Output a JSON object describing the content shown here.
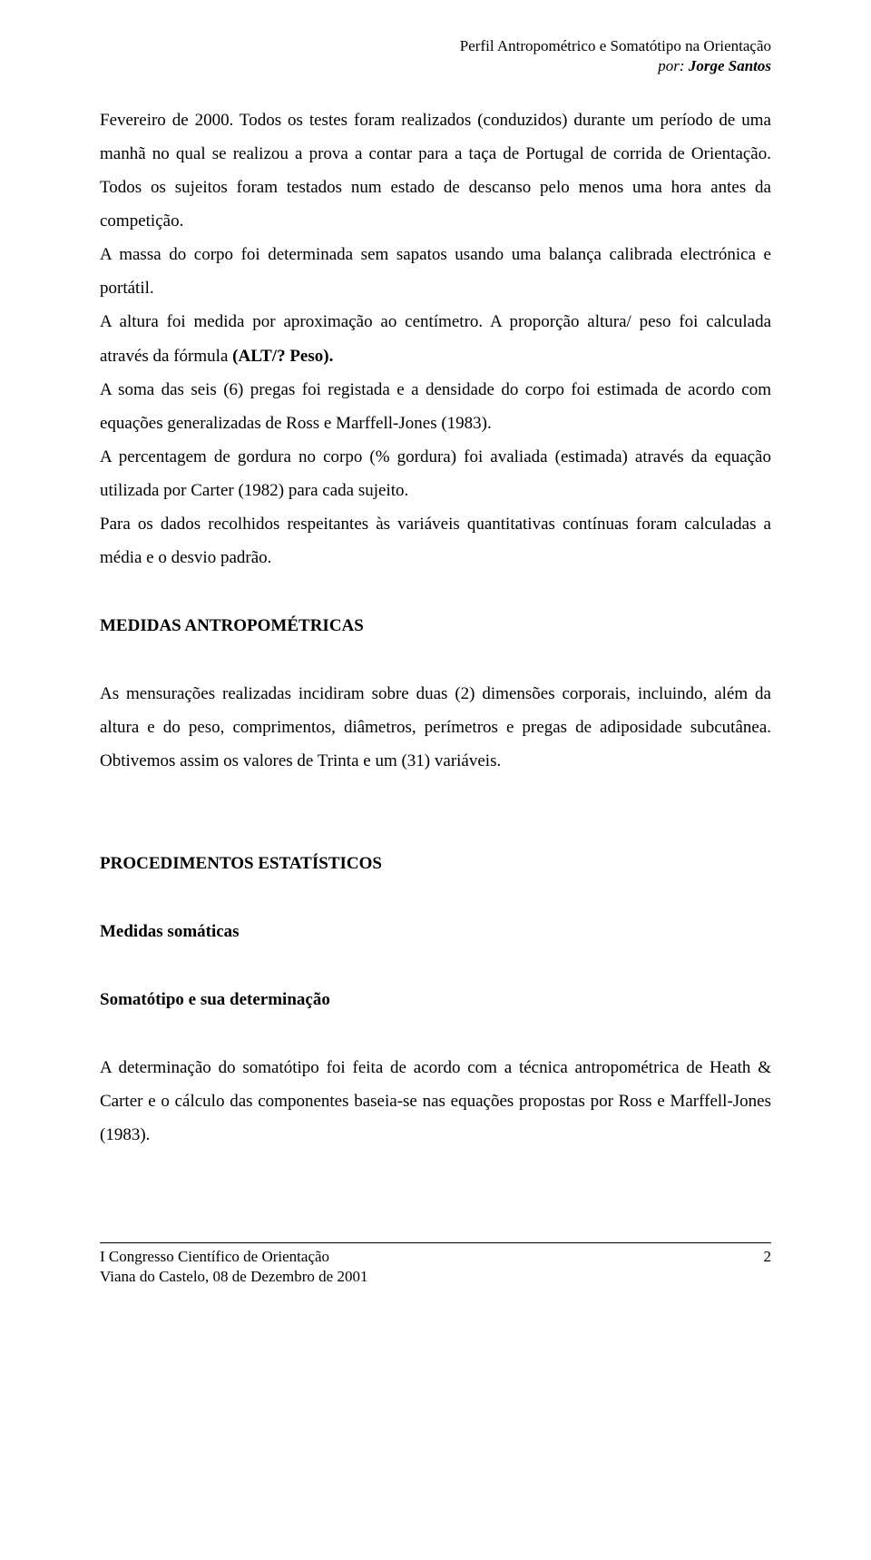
{
  "header": {
    "title": "Perfil Antropométrico e Somatótipo na Orientação",
    "author_by": "por: ",
    "author_name": "Jorge Santos"
  },
  "paragraphs": {
    "p1": "Fevereiro de 2000. Todos os testes foram realizados (conduzidos) durante um período de uma manhã no qual se realizou a prova a contar para a taça de Portugal de corrida de Orientação.",
    "p2": "Todos os sujeitos foram testados num estado de descanso pelo menos uma hora antes da competição.",
    "p3": "A massa do corpo foi determinada sem sapatos usando uma balança calibrada electrónica e portátil.",
    "p4_pre": "A altura foi medida por aproximação ao centímetro. A proporção altura/ peso foi calculada através da fórmula ",
    "p4_bold": "(ALT/? Peso).",
    "p5": "A soma das seis (6) pregas foi registada e a densidade do corpo foi estimada de acordo com equações generalizadas de Ross e Marffell-Jones (1983).",
    "p6": "A percentagem de gordura no corpo (% gordura) foi avaliada (estimada) através da equação utilizada por Carter (1982) para cada sujeito.",
    "p7": "Para os dados recolhidos respeitantes às variáveis quantitativas contínuas foram calculadas a média e o desvio padrão."
  },
  "section1": {
    "heading": "MEDIDAS ANTROPOMÉTRICAS",
    "text": "As mensurações realizadas incidiram sobre duas (2) dimensões corporais, incluindo, além da altura e do peso, comprimentos, diâmetros, perímetros e pregas de adiposidade subcutânea. Obtivemos assim os valores de Trinta e um (31) variáveis."
  },
  "section2": {
    "heading": "PROCEDIMENTOS ESTATÍSTICOS",
    "sub1": "Medidas somáticas",
    "sub2": "Somatótipo e sua determinação",
    "text": "A determinação do somatótipo foi feita de acordo com a técnica antropométrica de Heath & Carter e o cálculo das componentes baseia-se nas equações propostas por Ross e Marffell-Jones (1983)."
  },
  "footer": {
    "line1": "I Congresso Científico de Orientação",
    "line2": "Viana do Castelo, 08 de Dezembro de 2001",
    "page": "2"
  }
}
